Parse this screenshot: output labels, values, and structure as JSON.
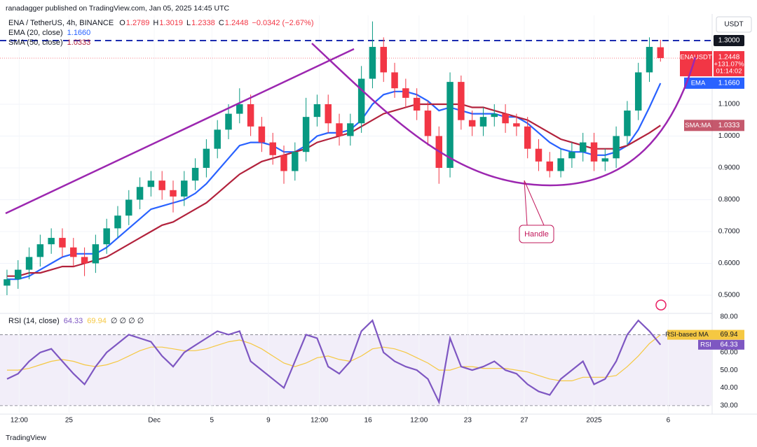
{
  "chart_data": {
    "type": "candlestick",
    "publisher": "ranadagger published on TradingView.com, Jan 05, 2025 14:45 UTC",
    "symbol": "ENA / TetherUS, 4h, BINANCE",
    "ohlc_labels": {
      "open": "O",
      "high": "H",
      "low": "L",
      "close": "C"
    },
    "change": "−0.0342 (−2.67%)",
    "currency": "USDT",
    "up_color": "#089981",
    "down_color": "#f23645",
    "open": [
      0.53,
      0.55,
      0.58,
      0.62,
      0.66,
      0.68,
      0.65,
      0.62,
      0.6,
      0.66,
      0.71,
      0.75,
      0.8,
      0.84,
      0.86,
      0.83,
      0.81,
      0.86,
      0.9,
      0.96,
      1.02,
      1.07,
      1.1,
      1.03,
      0.98,
      0.94,
      0.89,
      0.95,
      1.06,
      1.1,
      1.04,
      1.0,
      1.04,
      1.18,
      1.28,
      1.2,
      1.15,
      1.12,
      1.08,
      1.0,
      0.9,
      1.17,
      1.05,
      1.03,
      1.06,
      1.07,
      1.04,
      1.03,
      0.96,
      0.92,
      0.89,
      0.93,
      0.95,
      0.98,
      0.92,
      0.93,
      1.0,
      1.08,
      1.2,
      1.2789
    ],
    "high": [
      0.58,
      0.61,
      0.65,
      0.69,
      0.71,
      0.71,
      0.68,
      0.65,
      0.69,
      0.74,
      0.78,
      0.83,
      0.87,
      0.89,
      0.89,
      0.86,
      0.89,
      0.93,
      0.99,
      1.05,
      1.1,
      1.15,
      1.13,
      1.06,
      1.01,
      0.97,
      0.98,
      1.12,
      1.13,
      1.13,
      1.07,
      1.07,
      1.22,
      1.36,
      1.31,
      1.23,
      1.18,
      1.15,
      1.11,
      1.03,
      1.2,
      1.19,
      1.08,
      1.09,
      1.1,
      1.1,
      1.07,
      1.06,
      0.99,
      0.95,
      0.96,
      0.98,
      1.01,
      1.01,
      0.96,
      1.03,
      1.11,
      1.23,
      1.31,
      1.3019
    ],
    "low": [
      0.5,
      0.52,
      0.55,
      0.59,
      0.63,
      0.62,
      0.59,
      0.56,
      0.57,
      0.63,
      0.68,
      0.72,
      0.77,
      0.81,
      0.8,
      0.76,
      0.78,
      0.83,
      0.87,
      0.93,
      0.99,
      1.04,
      1.0,
      0.95,
      0.91,
      0.85,
      0.86,
      0.92,
      1.03,
      1.01,
      0.97,
      0.97,
      1.01,
      1.15,
      1.17,
      1.12,
      1.09,
      1.05,
      0.97,
      0.85,
      0.87,
      1.02,
      1.0,
      1.0,
      1.03,
      1.01,
      1.0,
      0.93,
      0.89,
      0.87,
      0.87,
      0.9,
      0.92,
      0.89,
      0.89,
      0.9,
      0.97,
      1.05,
      1.17,
      1.2338
    ],
    "close": [
      0.55,
      0.58,
      0.62,
      0.66,
      0.68,
      0.65,
      0.62,
      0.6,
      0.66,
      0.71,
      0.75,
      0.8,
      0.84,
      0.86,
      0.83,
      0.81,
      0.86,
      0.9,
      0.96,
      1.02,
      1.07,
      1.1,
      1.03,
      0.98,
      0.94,
      0.89,
      0.95,
      1.06,
      1.1,
      1.04,
      1.0,
      1.04,
      1.18,
      1.28,
      1.2,
      1.15,
      1.12,
      1.08,
      1.0,
      0.9,
      1.17,
      1.05,
      1.03,
      1.06,
      1.07,
      1.04,
      1.03,
      0.96,
      0.92,
      0.89,
      0.93,
      0.95,
      0.98,
      0.92,
      0.93,
      1.0,
      1.08,
      1.2,
      1.28,
      1.2448
    ],
    "xlim": [
      -0.63,
      63.6
    ],
    "xticks": [
      {
        "value": 1.1,
        "label": "12:00"
      },
      {
        "value": 5.6,
        "label": "25"
      },
      {
        "value": 13.3,
        "label": "Dec"
      },
      {
        "value": 18.5,
        "label": "5"
      },
      {
        "value": 23.6,
        "label": "9"
      },
      {
        "value": 28.2,
        "label": "12:00"
      },
      {
        "value": 32.6,
        "label": "16"
      },
      {
        "value": 37.2,
        "label": "12:00"
      },
      {
        "value": 41.6,
        "label": "23"
      },
      {
        "value": 46.7,
        "label": "27"
      },
      {
        "value": 53.0,
        "label": "2025"
      },
      {
        "value": 59.7,
        "label": "6"
      }
    ],
    "ylim": [
      0.445,
      1.379
    ],
    "yticks": [
      {
        "value": 0.5,
        "label": "0.5000"
      },
      {
        "value": 0.6,
        "label": "0.6000"
      },
      {
        "value": 0.7,
        "label": "0.7000"
      },
      {
        "value": 0.8,
        "label": "0.8000"
      },
      {
        "value": 0.9,
        "label": "0.9000"
      },
      {
        "value": 1.0,
        "label": "1.0000"
      },
      {
        "value": 1.1,
        "label": "1.1000"
      },
      {
        "value": 1.3,
        "label": "1.3000"
      }
    ],
    "resistance": 1.3,
    "resistance_color": "#1c2cb0",
    "last_label": {
      "symbol": "ENAUSDT",
      "change": "+131.07%",
      "countdown": "01:14:02"
    },
    "indicators": [
      {
        "name": "EMA (20, close)",
        "short": "EMA",
        "color": "#2962ff",
        "last_value_label": "1.1660",
        "values": [
          0.55,
          0.55,
          0.56,
          0.58,
          0.6,
          0.62,
          0.63,
          0.63,
          0.63,
          0.65,
          0.68,
          0.71,
          0.74,
          0.77,
          0.78,
          0.79,
          0.8,
          0.82,
          0.85,
          0.89,
          0.93,
          0.97,
          0.98,
          0.98,
          0.97,
          0.95,
          0.95,
          0.97,
          1.0,
          1.01,
          1.01,
          1.02,
          1.05,
          1.1,
          1.13,
          1.14,
          1.14,
          1.13,
          1.11,
          1.08,
          1.09,
          1.08,
          1.07,
          1.07,
          1.07,
          1.06,
          1.06,
          1.04,
          1.01,
          0.98,
          0.96,
          0.95,
          0.95,
          0.94,
          0.94,
          0.95,
          0.97,
          1.02,
          1.09,
          1.166
        ]
      },
      {
        "name": "SMA (50, close)",
        "short": "SMA:MA",
        "color": "#b2223c",
        "values": [
          0.56,
          0.56,
          0.57,
          0.57,
          0.58,
          0.59,
          0.59,
          0.6,
          0.61,
          0.62,
          0.64,
          0.66,
          0.68,
          0.7,
          0.72,
          0.73,
          0.75,
          0.77,
          0.79,
          0.82,
          0.85,
          0.88,
          0.9,
          0.92,
          0.93,
          0.94,
          0.95,
          0.96,
          0.98,
          0.99,
          1.0,
          1.01,
          1.03,
          1.05,
          1.07,
          1.08,
          1.09,
          1.1,
          1.1,
          1.1,
          1.1,
          1.1,
          1.09,
          1.09,
          1.08,
          1.07,
          1.06,
          1.05,
          1.03,
          1.01,
          0.99,
          0.98,
          0.97,
          0.96,
          0.96,
          0.96,
          0.97,
          0.99,
          1.01,
          1.0333
        ]
      }
    ],
    "annotation": "Handle",
    "rsi": {
      "title": "RSI (14, close)",
      "extra": "∅ ∅ ∅ ∅",
      "ylim": [
        26,
        82
      ],
      "band": [
        30,
        70
      ],
      "yticks": [
        {
          "value": 30,
          "label": "30.00"
        },
        {
          "value": 40,
          "label": "40.00"
        },
        {
          "value": 50,
          "label": "50.00"
        },
        {
          "value": 60,
          "label": "60.00"
        },
        {
          "value": 80,
          "label": "80.00"
        }
      ],
      "series": [
        {
          "name": "RSI",
          "color": "#7e57c2",
          "values": [
            45,
            48,
            55,
            60,
            62,
            55,
            48,
            42,
            52,
            60,
            65,
            70,
            68,
            66,
            58,
            52,
            60,
            64,
            68,
            72,
            70,
            72,
            55,
            50,
            45,
            40,
            55,
            70,
            68,
            52,
            48,
            55,
            72,
            78,
            60,
            55,
            52,
            50,
            45,
            32,
            68,
            52,
            50,
            52,
            55,
            50,
            48,
            42,
            38,
            36,
            45,
            50,
            55,
            42,
            45,
            55,
            70,
            78,
            72,
            64.33
          ]
        },
        {
          "name": "RSI-based MA",
          "color": "#f5c842",
          "values": [
            50,
            50,
            51,
            53,
            55,
            56,
            55,
            53,
            52,
            53,
            55,
            58,
            61,
            63,
            63,
            62,
            61,
            61,
            62,
            64,
            66,
            67,
            65,
            62,
            58,
            54,
            52,
            54,
            57,
            58,
            56,
            55,
            58,
            62,
            63,
            62,
            60,
            57,
            54,
            50,
            50,
            52,
            52,
            51,
            51,
            51,
            50,
            49,
            47,
            45,
            44,
            44,
            46,
            46,
            46,
            47,
            52,
            58,
            65,
            69.94
          ]
        }
      ]
    },
    "footer": "TradingView"
  }
}
